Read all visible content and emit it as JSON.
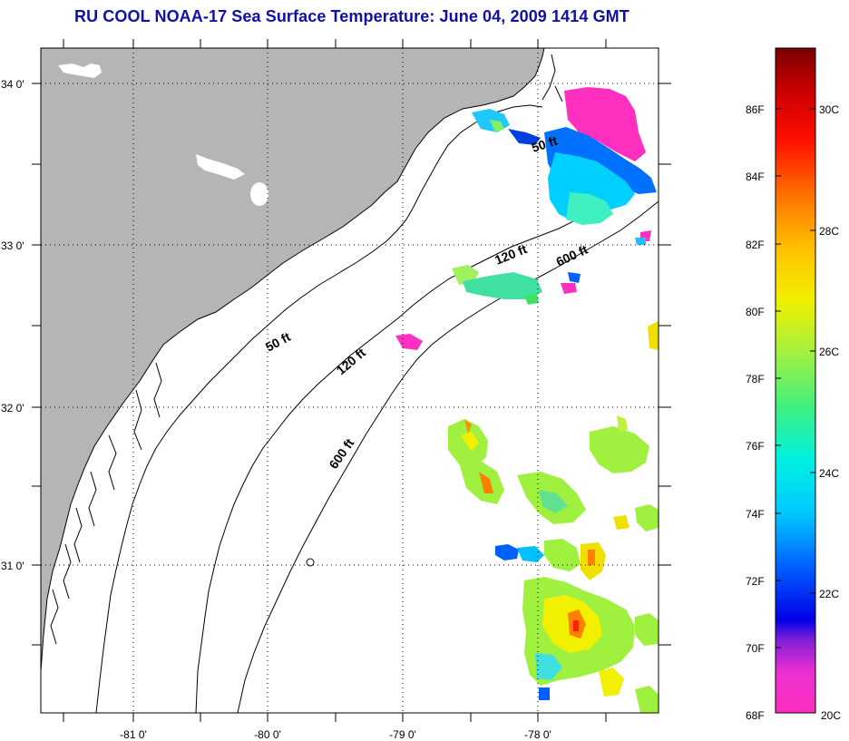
{
  "title": "RU COOL  NOAA-17  Sea Surface Temperature:  June 04, 2009 1414 GMT",
  "map": {
    "lon_labels": [
      "-81 0'",
      "-80 0'",
      "-79 0'",
      "-78 0'"
    ],
    "lat_labels": [
      "34 0'",
      "33 0'",
      "32 0'",
      "31 0'"
    ],
    "contour_labels": [
      "50 ft",
      "120 ft",
      "600 ft",
      "50 ft",
      "120 ft",
      "600 ft"
    ],
    "colors": {
      "land": "#b5b5b5",
      "ocean": "#ffffff",
      "title": "#1010a8"
    }
  },
  "colorbar": {
    "fahrenheit_labels": [
      "86F",
      "84F",
      "82F",
      "80F",
      "78F",
      "76F",
      "74F",
      "72F",
      "70F",
      "68F"
    ],
    "celsius_labels": [
      "30C",
      "28C",
      "26C",
      "24C",
      "22C",
      "20C"
    ],
    "range_f": [
      68,
      88
    ],
    "range_c": [
      20,
      31.1
    ]
  }
}
